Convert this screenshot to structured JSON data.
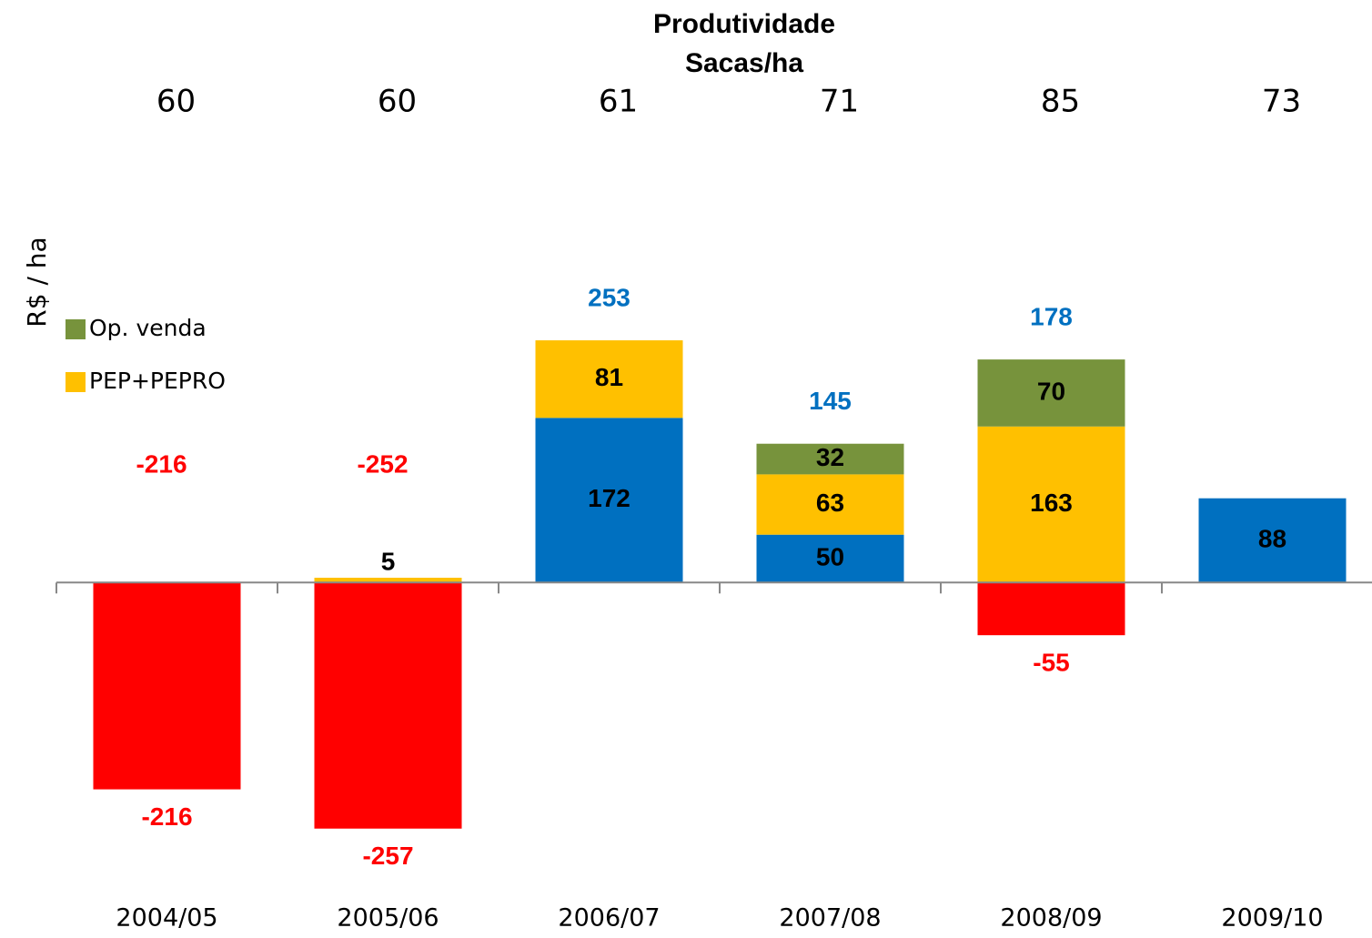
{
  "chart_data": {
    "type": "bar",
    "stacked": true,
    "title": "Produtividade",
    "subtitle": "Sacas/ha",
    "productivity": [
      60,
      60,
      61,
      71,
      85,
      73
    ],
    "y_label": "R$ / ha",
    "categories": [
      "2004/05",
      "2005/06",
      "2006/07",
      "2007/08",
      "2008/09",
      "2009/10"
    ],
    "series": [
      {
        "values": [
          -216,
          -257,
          172,
          50,
          -55,
          88
        ],
        "color": "#0070c0",
        "negative_color": "#ff0000"
      },
      {
        "name": "PEP+PEPRO",
        "color": "#ffc000",
        "values": [
          null,
          5,
          81,
          63,
          163,
          null
        ]
      },
      {
        "name": "Op. venda",
        "color": "#77933c",
        "values": [
          null,
          null,
          null,
          32,
          70,
          null
        ]
      }
    ],
    "totals": [
      -216,
      -252,
      253,
      145,
      178,
      null
    ],
    "total_color": "#0070c0",
    "negative_total_color": "#ff0000",
    "ylim": [
      -300,
      350
    ],
    "legend": "left"
  }
}
